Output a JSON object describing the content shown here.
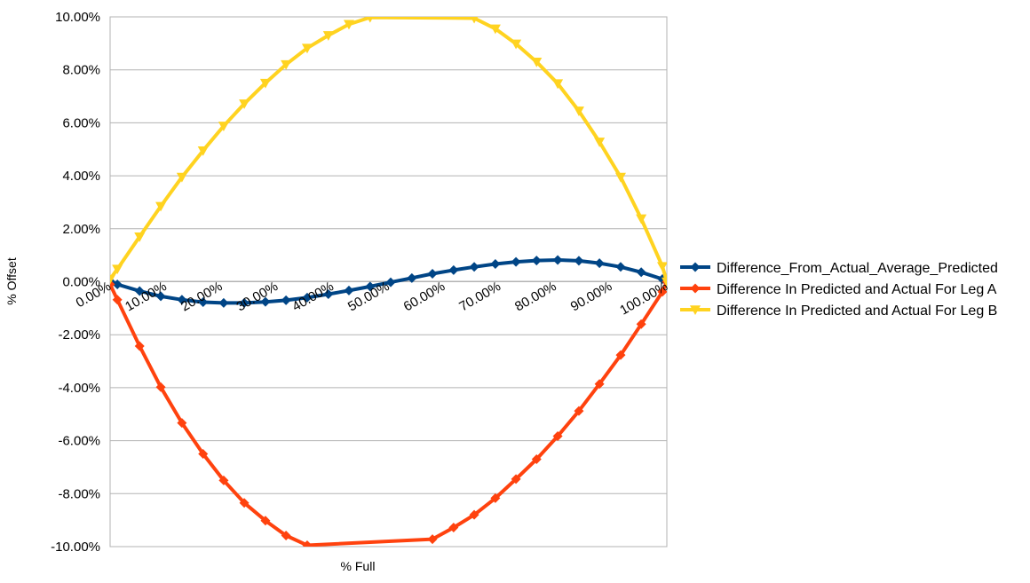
{
  "chart_data": {
    "type": "line",
    "title": "",
    "xlabel": "% Full",
    "ylabel": "% Offset",
    "xlim": [
      0,
      100
    ],
    "ylim": [
      -10,
      10
    ],
    "y_tick_labels": [
      "-10.00%",
      "-8.00%",
      "-6.00%",
      "-4.00%",
      "-2.00%",
      "0.00%",
      "2.00%",
      "4.00%",
      "6.00%",
      "8.00%",
      "10.00%"
    ],
    "y_tick_values": [
      -10,
      -8,
      -6,
      -4,
      -2,
      0,
      2,
      4,
      6,
      8,
      10
    ],
    "x_tick_labels": [
      "0.00%",
      "10.00%",
      "20.00%",
      "30.00%",
      "40.00%",
      "50.00%",
      "60.00%",
      "70.00%",
      "80.00%",
      "90.00%",
      "100.00%"
    ],
    "x_tick_values": [
      0,
      10,
      20,
      30,
      40,
      50,
      60,
      70,
      80,
      90,
      100
    ],
    "grid": "horizontal",
    "legend_position": "right",
    "series": [
      {
        "name": "Difference_From_Actual_Average_Predicted",
        "color": "#004586",
        "marker": "diamond",
        "x": [
          0,
          1.3,
          5.3,
          9.1,
          12.9,
          16.7,
          20.4,
          24.1,
          27.9,
          31.6,
          35.4,
          39.2,
          42.9,
          46.7,
          50.4,
          54.2,
          57.9,
          61.7,
          65.4,
          69.2,
          72.9,
          76.6,
          80.4,
          84.2,
          87.9,
          91.7,
          95.4,
          99.2,
          100
        ],
        "y": [
          0.02,
          -0.1,
          -0.35,
          -0.55,
          -0.68,
          -0.77,
          -0.8,
          -0.8,
          -0.76,
          -0.7,
          -0.6,
          -0.47,
          -0.33,
          -0.18,
          -0.02,
          0.14,
          0.3,
          0.44,
          0.56,
          0.67,
          0.75,
          0.8,
          0.82,
          0.79,
          0.7,
          0.56,
          0.36,
          0.1,
          0
        ]
      },
      {
        "name": "Difference In Predicted and Actual For Leg A",
        "color": "#ff420e",
        "marker": "diamond",
        "x": [
          0,
          1.3,
          5.3,
          9.1,
          12.9,
          16.7,
          20.4,
          24.1,
          27.9,
          31.6,
          35.4,
          57.9,
          61.7,
          65.4,
          69.2,
          72.9,
          76.6,
          80.4,
          84.2,
          87.9,
          91.7,
          95.4,
          99.2,
          100
        ],
        "y": [
          -0.1,
          -0.68,
          -2.43,
          -3.98,
          -5.33,
          -6.5,
          -7.5,
          -8.35,
          -9.02,
          -9.58,
          -9.95,
          -9.72,
          -9.28,
          -8.8,
          -8.17,
          -7.45,
          -6.7,
          -5.83,
          -4.88,
          -3.86,
          -2.77,
          -1.6,
          -0.38,
          0
        ]
      },
      {
        "name": "Difference In Predicted and Actual For Leg B",
        "color": "#ffd320",
        "marker": "triangle-down",
        "x": [
          0,
          1.3,
          5.3,
          9.1,
          12.9,
          16.7,
          20.4,
          24.1,
          27.9,
          31.6,
          35.4,
          39.2,
          42.9,
          46.7,
          65.4,
          69.2,
          72.9,
          76.6,
          80.4,
          84.2,
          87.9,
          91.7,
          95.4,
          99.2,
          100
        ],
        "y": [
          0.1,
          0.48,
          1.7,
          2.85,
          3.95,
          4.95,
          5.88,
          6.72,
          7.5,
          8.2,
          8.82,
          9.3,
          9.72,
          9.98,
          9.95,
          9.55,
          8.98,
          8.3,
          7.48,
          6.45,
          5.28,
          3.95,
          2.38,
          0.58,
          0
        ]
      }
    ]
  }
}
